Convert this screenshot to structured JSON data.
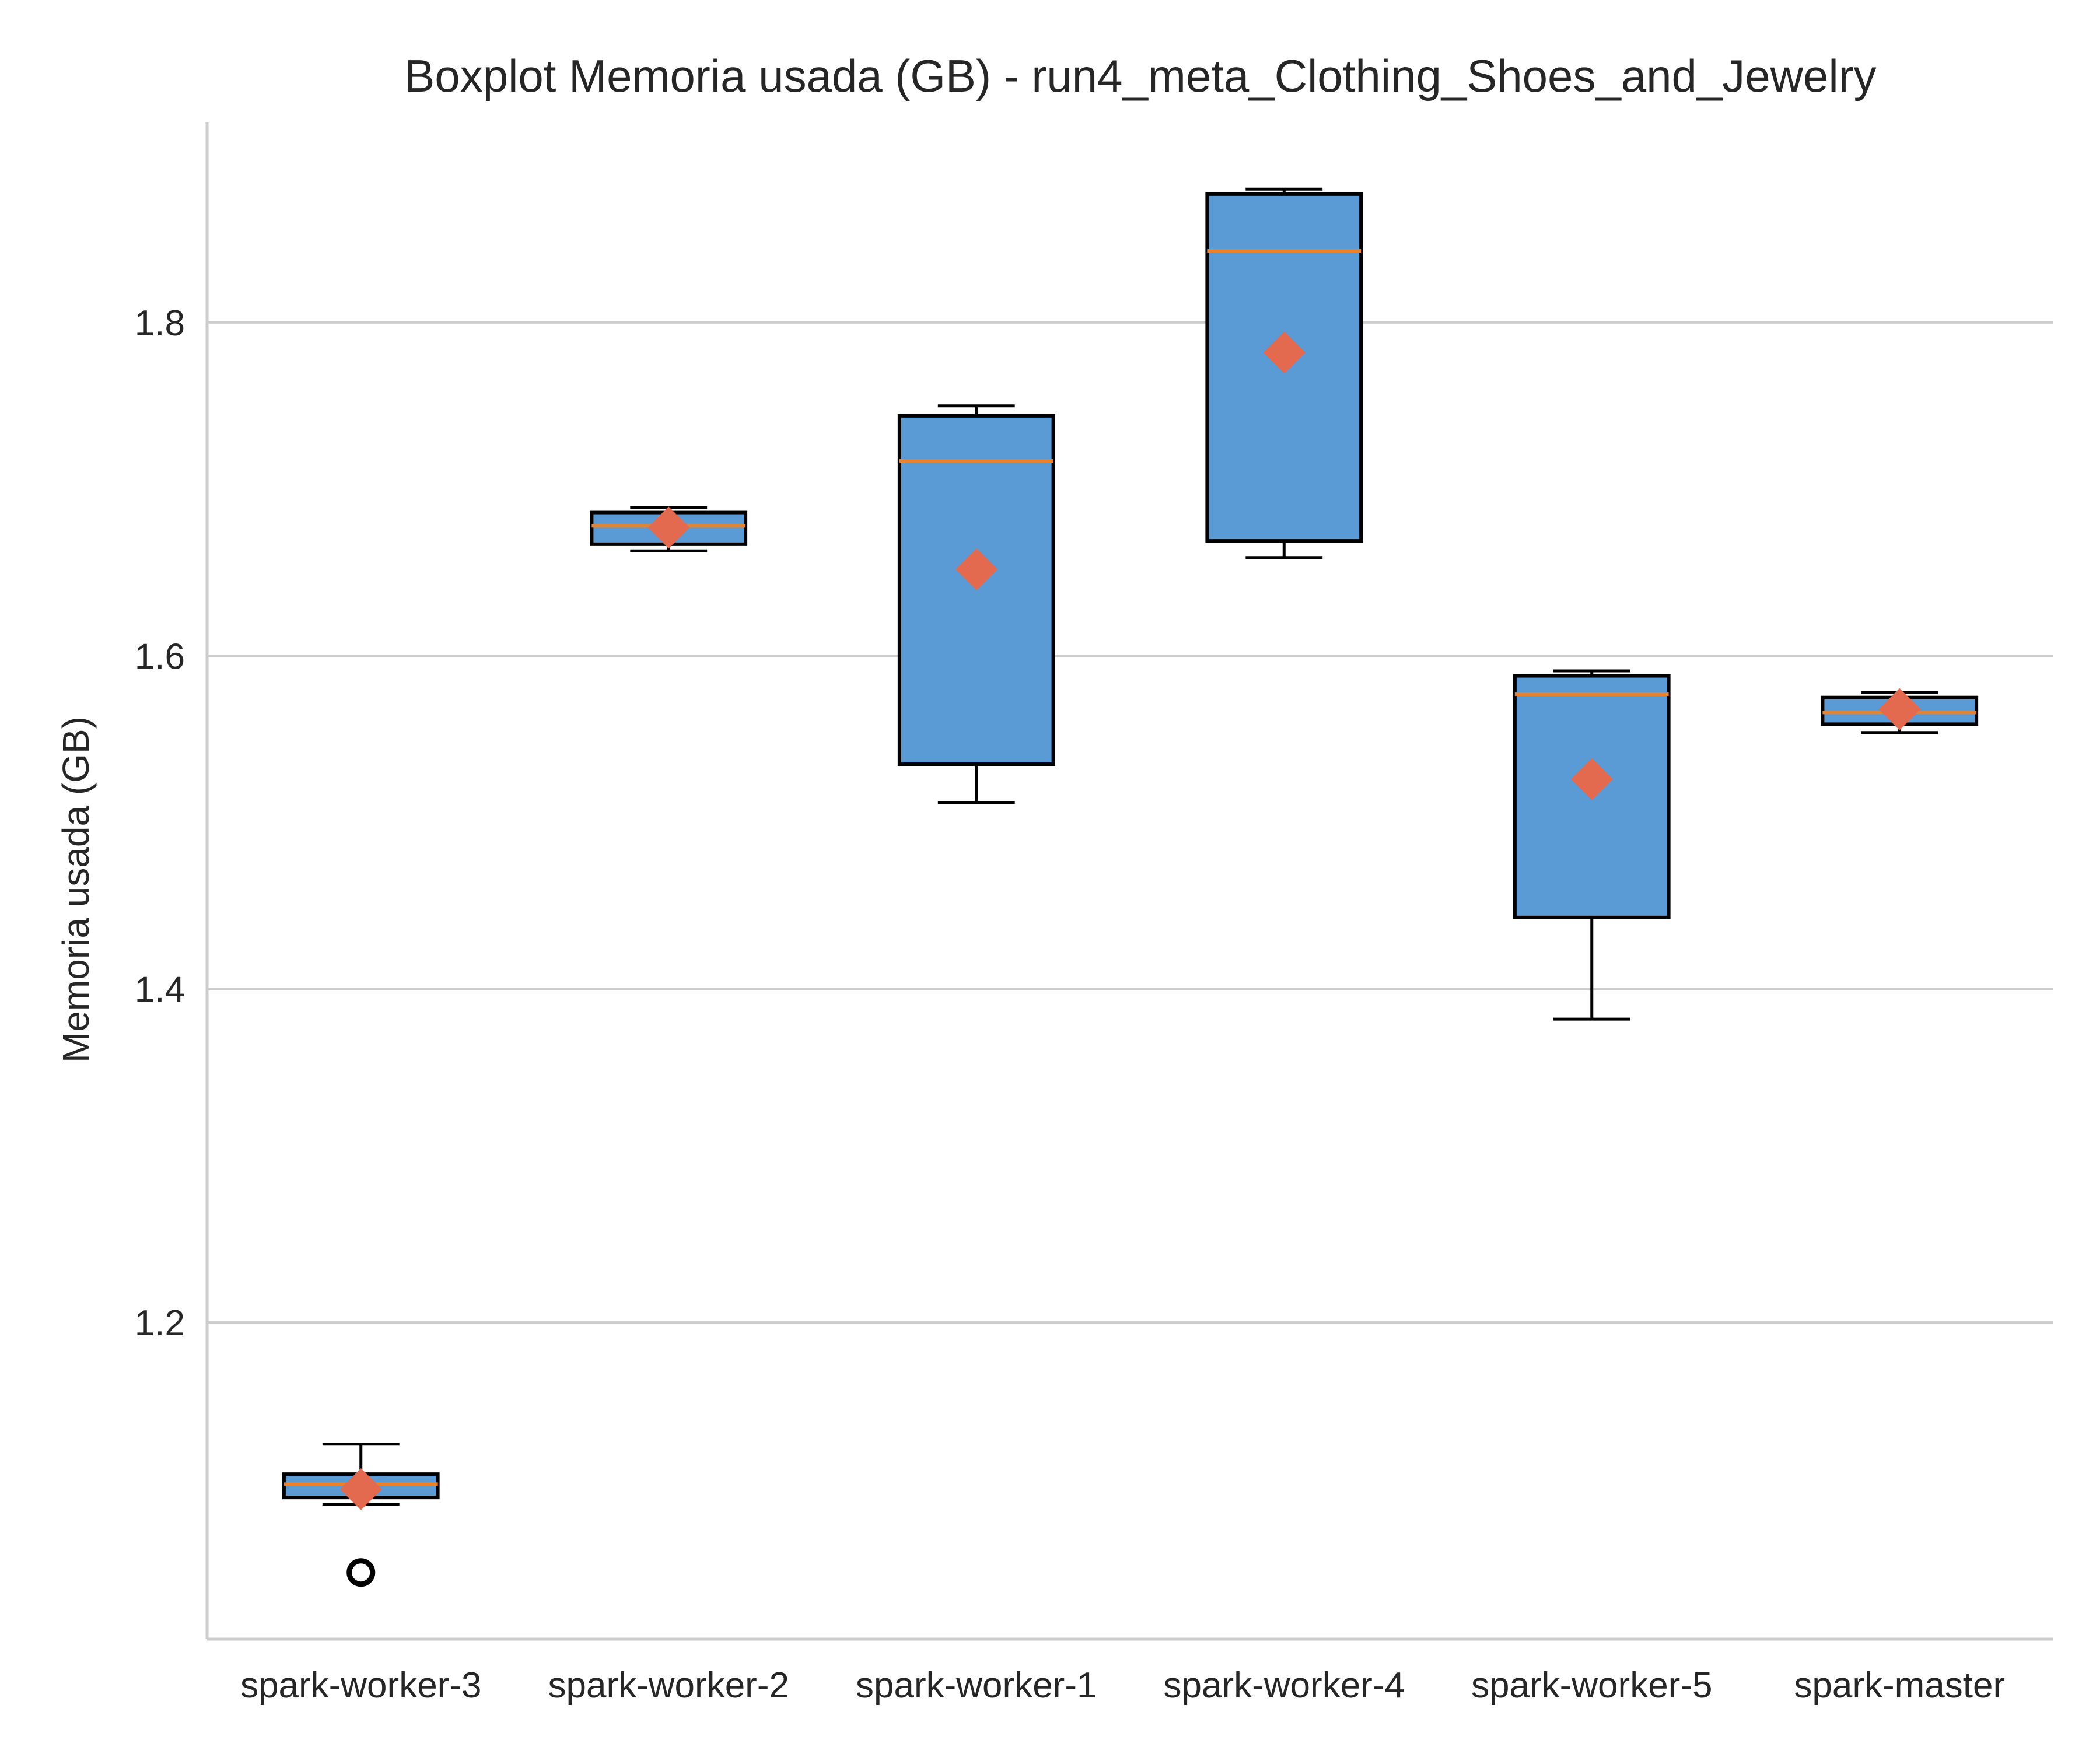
{
  "chart_data": {
    "type": "boxplot",
    "title": "Boxplot Memoria usada (GB) - run4_meta_Clothing_Shoes_and_Jewelry",
    "xlabel": "",
    "ylabel": "Memoria usada (GB)",
    "ylim": [
      1.01,
      1.92
    ],
    "yticks": [
      1.2,
      1.4,
      1.6,
      1.8
    ],
    "ytick_labels": [
      "1.2",
      "1.4",
      "1.6",
      "1.8"
    ],
    "grid": "horizontal",
    "categories": [
      "spark-worker-3",
      "spark-worker-2",
      "spark-worker-1",
      "spark-worker-4",
      "spark-worker-5",
      "spark-master"
    ],
    "boxes": [
      {
        "category": "spark-worker-3",
        "whisker_low": 1.091,
        "q1": 1.095,
        "median": 1.103,
        "q3": 1.109,
        "whisker_high": 1.127,
        "mean": 1.1,
        "outliers": [
          1.05
        ]
      },
      {
        "category": "spark-worker-2",
        "whisker_low": 1.663,
        "q1": 1.667,
        "median": 1.678,
        "q3": 1.686,
        "whisker_high": 1.689,
        "mean": 1.677,
        "outliers": []
      },
      {
        "category": "spark-worker-1",
        "whisker_low": 1.512,
        "q1": 1.535,
        "median": 1.717,
        "q3": 1.744,
        "whisker_high": 1.75,
        "mean": 1.652,
        "outliers": []
      },
      {
        "category": "spark-worker-4",
        "whisker_low": 1.659,
        "q1": 1.669,
        "median": 1.843,
        "q3": 1.877,
        "whisker_high": 1.88,
        "mean": 1.782,
        "outliers": []
      },
      {
        "category": "spark-worker-5",
        "whisker_low": 1.382,
        "q1": 1.443,
        "median": 1.577,
        "q3": 1.588,
        "whisker_high": 1.591,
        "mean": 1.526,
        "outliers": []
      },
      {
        "category": "spark-master",
        "whisker_low": 1.554,
        "q1": 1.559,
        "median": 1.566,
        "q3": 1.575,
        "whisker_high": 1.578,
        "mean": 1.568,
        "outliers": []
      }
    ],
    "colors": {
      "box_fill": "#5b9bd5",
      "box_edge": "#000000",
      "median": "#e8822d",
      "mean_marker": "#e36a4f",
      "grid": "#cccccc",
      "spine": "#cccccc",
      "text": "#262626"
    }
  }
}
